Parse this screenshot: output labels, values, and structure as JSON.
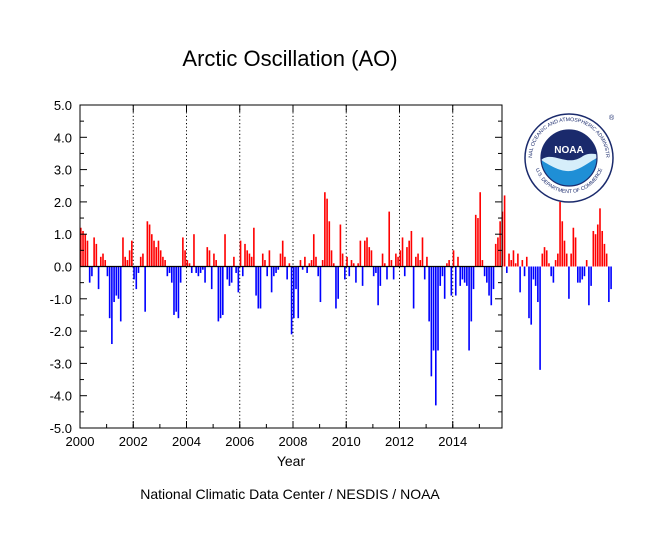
{
  "chart_data": {
    "type": "bar",
    "title": "Arctic Oscillation (AO)",
    "xlabel": "Year",
    "ylabel": "",
    "ylim": [
      -5.0,
      5.0
    ],
    "xlim": [
      2000.0,
      2015.85
    ],
    "y_ticks": [
      "5.0",
      "4.0",
      "3.0",
      "2.0",
      "1.0",
      "0.0",
      "-1.0",
      "-2.0",
      "-3.0",
      "-4.0",
      "-5.0"
    ],
    "x_ticks": [
      "2000",
      "2002",
      "2004",
      "2006",
      "2008",
      "2010",
      "2012",
      "2014"
    ],
    "grid": "dotted vertical lines at every second year",
    "positive_color": "#ff0000",
    "negative_color": "#0000ff",
    "start": "2000-01",
    "frequency": "monthly",
    "values": [
      1.2,
      1.1,
      1.0,
      0.8,
      -0.5,
      -0.3,
      0.9,
      0.7,
      -0.7,
      0.3,
      0.4,
      0.2,
      -0.3,
      -1.6,
      -2.4,
      -1.1,
      -0.9,
      -1.0,
      -1.7,
      0.9,
      0.3,
      0.2,
      0.5,
      0.8,
      -0.4,
      -0.7,
      -0.2,
      0.3,
      0.4,
      -1.4,
      1.4,
      1.3,
      1.0,
      0.8,
      0.6,
      0.8,
      0.5,
      0.3,
      0.2,
      -0.3,
      -0.2,
      -0.5,
      -1.5,
      -1.4,
      -1.6,
      -0.5,
      0.9,
      0.5,
      0.2,
      0.1,
      -0.2,
      1.0,
      -0.2,
      -0.3,
      -0.2,
      -0.1,
      -0.5,
      0.6,
      0.5,
      -0.7,
      0.4,
      0.2,
      -1.7,
      -1.6,
      -1.5,
      1.0,
      -0.4,
      -0.6,
      -0.5,
      0.3,
      -0.2,
      -0.8,
      0.8,
      -0.3,
      0.7,
      0.5,
      0.4,
      0.3,
      1.2,
      -0.9,
      -1.3,
      -1.3,
      0.4,
      0.2,
      -0.3,
      0.5,
      -0.8,
      -0.3,
      -0.2,
      -0.1,
      0.4,
      0.8,
      0.3,
      -0.4,
      0.1,
      -2.1,
      -1.6,
      -0.7,
      -1.6,
      0.2,
      -0.1,
      0.3,
      -0.2,
      0.1,
      0.2,
      1.0,
      0.3,
      -0.3,
      -1.1,
      0.2,
      2.3,
      2.1,
      1.4,
      0.5,
      0.1,
      -1.3,
      -1.0,
      1.3,
      0.4,
      -0.4,
      0.3,
      -0.3,
      0.2,
      0.1,
      -0.5,
      0.1,
      0.8,
      -0.6,
      0.8,
      0.9,
      0.6,
      0.5,
      -0.3,
      -0.2,
      -1.2,
      -0.6,
      0.4,
      0.1,
      -0.4,
      1.7,
      0.2,
      -0.4,
      0.4,
      0.3,
      0.5,
      0.9,
      -0.3,
      0.6,
      0.8,
      1.1,
      -1.3,
      0.3,
      0.4,
      0.2,
      0.9,
      -0.4,
      0.3,
      -1.7,
      -3.4,
      -2.6,
      -4.3,
      -2.6,
      -0.6,
      -0.3,
      -1.0,
      0.1,
      0.2,
      -0.9,
      0.5,
      -0.9,
      0.3,
      -0.6,
      -0.4,
      -0.5,
      -0.6,
      -2.6,
      -1.7,
      -0.7,
      1.6,
      1.5,
      2.3,
      0.2,
      -0.3,
      -0.5,
      -0.9,
      -1.2,
      -0.7,
      0.7,
      0.9,
      1.4,
      1.7,
      2.2,
      -0.2,
      0.4,
      0.2,
      0.5,
      0.1,
      0.4,
      -0.8,
      0.2,
      -0.3,
      0.3,
      -1.6,
      -1.8,
      -0.4,
      -0.6,
      -1.1,
      -3.2,
      0.4,
      0.6,
      0.5,
      0.1,
      -0.3,
      -0.5,
      0.2,
      0.4,
      2.0,
      1.4,
      0.8,
      0.4,
      -1.0,
      0.4,
      1.2,
      0.9,
      -0.5,
      -0.5,
      -0.4,
      -0.3,
      0.2,
      -1.2,
      -0.6,
      1.1,
      1.0,
      1.3,
      1.8,
      1.1,
      0.7,
      0.4,
      -1.1,
      -0.7
    ]
  },
  "footer": {
    "credit": "National Climatic Data Center / NESDIS / NOAA"
  },
  "logo": {
    "text": "NOAA",
    "ring_text_top": "NATIONAL OCEANIC AND ATMOSPHERIC ADMINISTRATION",
    "ring_text_bottom": "U.S. DEPARTMENT OF COMMERCE",
    "registered_mark": "®",
    "colors": {
      "navy": "#1a2a6c",
      "sky": "#1f8fd6",
      "light": "#d6eefa"
    }
  }
}
